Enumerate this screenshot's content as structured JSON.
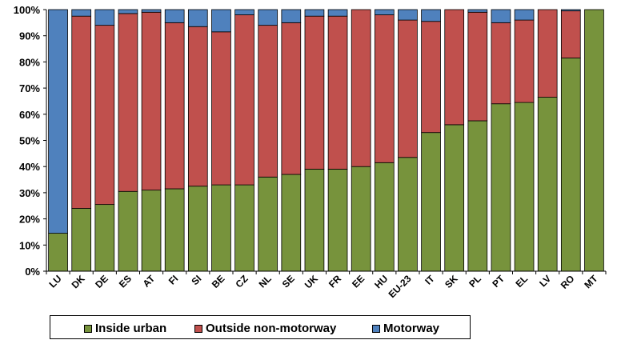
{
  "chart_data": {
    "type": "bar",
    "stacked": true,
    "categories": [
      "LU",
      "DK",
      "DE",
      "ES",
      "AT",
      "FI",
      "SI",
      "BE",
      "CZ",
      "NL",
      "SE",
      "UK",
      "FR",
      "EE",
      "HU",
      "EU-23",
      "IT",
      "SK",
      "PL",
      "PT",
      "EL",
      "LV",
      "RO",
      "MT"
    ],
    "series": [
      {
        "name": "Inside urban",
        "color": "#77933c",
        "values": [
          14.5,
          24,
          25.5,
          30.5,
          31,
          31.5,
          32.5,
          33,
          33,
          36,
          37,
          39,
          39,
          40,
          41.5,
          43.5,
          53,
          56,
          57.5,
          64,
          64.5,
          66.5,
          81.5,
          100
        ]
      },
      {
        "name": "Outside non-motorway",
        "color": "#c0504d",
        "values": [
          0,
          73.5,
          68.5,
          68,
          68,
          63.5,
          61,
          58.5,
          65,
          58,
          58,
          58.5,
          58.5,
          60,
          56.5,
          52.5,
          42.5,
          44,
          41.5,
          31,
          31.5,
          33.5,
          18,
          0
        ]
      },
      {
        "name": "Motorway",
        "color": "#4f81bd",
        "values": [
          85.5,
          2.5,
          6,
          1.5,
          1,
          5,
          6.5,
          8.5,
          2,
          6,
          5,
          2.5,
          2.5,
          0,
          2,
          4,
          4.5,
          0,
          1,
          5,
          4,
          0,
          0.5,
          0
        ]
      }
    ],
    "y_ticks": [
      "0%",
      "10%",
      "20%",
      "30%",
      "40%",
      "50%",
      "60%",
      "70%",
      "80%",
      "90%",
      "100%"
    ],
    "ylim": [
      0,
      100
    ],
    "grid": false,
    "legend_position": "bottom"
  }
}
